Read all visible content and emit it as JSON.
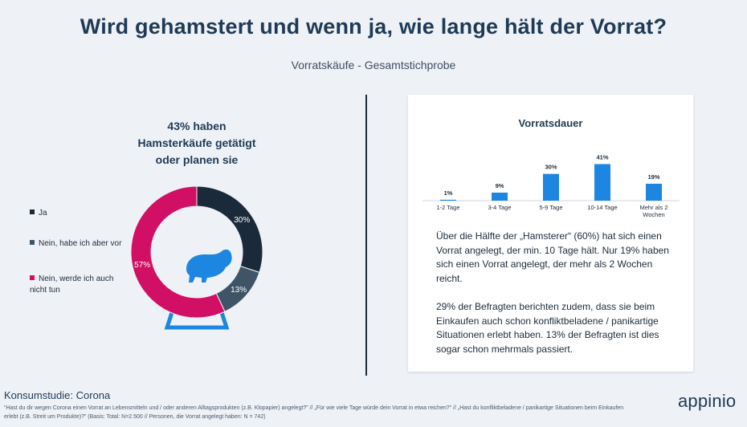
{
  "header": {
    "title": "Wird gehamstert und wenn ja, wie lange hält der Vorrat?",
    "subtitle": "Vorratskäufe - Gesamtstichprobe"
  },
  "left": {
    "headline": [
      "43% haben",
      "Hamsterkäufe getätigt",
      "oder planen sie"
    ]
  },
  "chart_data": [
    {
      "type": "pie",
      "donut": true,
      "labels": [
        "Ja",
        "Nein, habe ich aber vor",
        "Nein, werde ich auch nicht tun"
      ],
      "values": [
        30,
        13,
        57
      ],
      "value_labels": [
        "30%",
        "13%",
        "57%"
      ],
      "colors": [
        "#1b2a3a",
        "#3f5567",
        "#d10f64"
      ],
      "legend_position": "left"
    },
    {
      "type": "bar",
      "title": "Vorratsdauer",
      "categories": [
        "1-2 Tage",
        "3-4 Tage",
        "5-9 Tage",
        "10-14 Tage",
        "Mehr als 2 Wochen"
      ],
      "category_lines": [
        [
          "1-2 Tage"
        ],
        [
          "3-4 Tage"
        ],
        [
          "5-9 Tage"
        ],
        [
          "10-14 Tage"
        ],
        [
          "Mehr als 2",
          "Wochen"
        ]
      ],
      "values": [
        1,
        9,
        30,
        41,
        19
      ],
      "value_labels": [
        "1%",
        "9%",
        "30%",
        "41%",
        "19%"
      ],
      "color": "#1d86e0",
      "ylim": [
        0,
        45
      ],
      "grid": false
    }
  ],
  "card": {
    "paragraph1": "Über die Hälfte der „Hamsterer“ (60%) hat sich einen Vorrat angelegt, der min. 10 Tage hält. Nur 19% haben sich einen Vorrat angelegt, der mehr als 2 Wochen reicht.",
    "paragraph2": "29% der Befragten berichten zudem, dass sie beim Einkaufen auch schon konfliktbeladene / panikartige Situationen erlebt haben. 13% der Befragten ist dies sogar schon mehrmals passiert."
  },
  "footer": {
    "title": "Konsumstudie: Corona",
    "note": "“Hast du dir wegen Corona einen Vorrat an Lebensmitteln und / oder anderen Alltagsprodukten (z.B. Klopapier) angelegt?” // „Für wie viele Tage würde dein Vorrat in etwa reichen?” // „Hast du konfliktbeladene / panikartige Situationen beim Einkaufen erlebt (z.B. Streit um Produkte)?” (Basis: Total: N=2.500 // Personen, die Vorrat angelegt haben: N = 742)",
    "brand": "appinio"
  }
}
